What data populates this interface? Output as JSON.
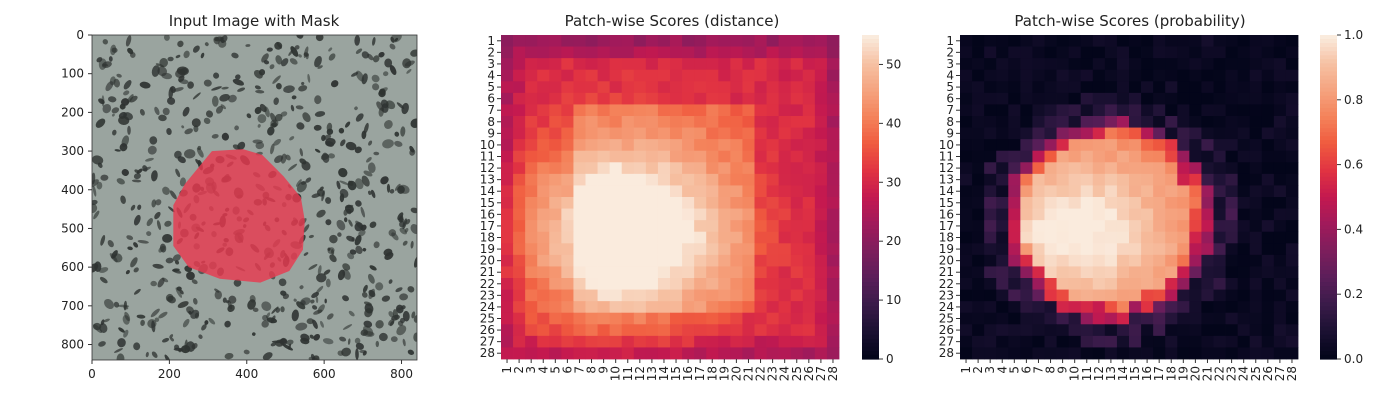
{
  "chart_data": [
    {
      "type": "image",
      "title": "Input Image with Mask",
      "xlim": [
        0,
        840
      ],
      "ylim": [
        840,
        0
      ],
      "x_ticks": [
        "0",
        "200",
        "400",
        "600",
        "800"
      ],
      "y_ticks": [
        "0",
        "100",
        "200",
        "300",
        "400",
        "500",
        "600",
        "700",
        "800"
      ],
      "mask": {
        "color": "#e8394f",
        "polygon": [
          [
            310,
            300
          ],
          [
            390,
            295
          ],
          [
            440,
            310
          ],
          [
            495,
            365
          ],
          [
            540,
            420
          ],
          [
            550,
            480
          ],
          [
            545,
            555
          ],
          [
            510,
            610
          ],
          [
            435,
            640
          ],
          [
            330,
            630
          ],
          [
            250,
            600
          ],
          [
            210,
            545
          ],
          [
            210,
            440
          ],
          [
            240,
            385
          ]
        ]
      },
      "background": {
        "base": "#9aa49f",
        "speckle": "#2e3331"
      }
    },
    {
      "type": "heatmap",
      "title": "Patch-wise Scores (distance)",
      "rows": [
        "1",
        "2",
        "3",
        "4",
        "5",
        "6",
        "7",
        "8",
        "9",
        "10",
        "11",
        "12",
        "13",
        "14",
        "15",
        "16",
        "17",
        "18",
        "19",
        "20",
        "21",
        "22",
        "23",
        "24",
        "25",
        "26",
        "27",
        "28"
      ],
      "cols": [
        "1",
        "2",
        "3",
        "4",
        "5",
        "6",
        "7",
        "8",
        "9",
        "10",
        "11",
        "12",
        "13",
        "14",
        "15",
        "16",
        "17",
        "18",
        "19",
        "20",
        "21",
        "22",
        "23",
        "24",
        "25",
        "26",
        "27",
        "28"
      ],
      "vmin": 0,
      "vmax": 55,
      "colorbar_ticks": [
        "0",
        "10",
        "20",
        "30",
        "40",
        "50"
      ],
      "model": {
        "center": [
          10.5,
          17.5
        ],
        "sigma_x": 6.2,
        "sigma_y": 5.4,
        "peak": 55,
        "base": 27,
        "halo": 13,
        "frame_inner": 7,
        "frame_outer": 21,
        "top_edge_offset": -2
      }
    },
    {
      "type": "heatmap",
      "title": "Patch-wise Scores (probability)",
      "rows": [
        "1",
        "2",
        "3",
        "4",
        "5",
        "6",
        "7",
        "8",
        "9",
        "10",
        "11",
        "12",
        "13",
        "14",
        "15",
        "16",
        "17",
        "18",
        "19",
        "20",
        "21",
        "22",
        "23",
        "24",
        "25",
        "26",
        "27",
        "28"
      ],
      "cols": [
        "1",
        "2",
        "3",
        "4",
        "5",
        "6",
        "7",
        "8",
        "9",
        "10",
        "11",
        "12",
        "13",
        "14",
        "15",
        "16",
        "17",
        "18",
        "19",
        "20",
        "21",
        "22",
        "23",
        "24",
        "25",
        "26",
        "27",
        "28"
      ],
      "vmin": 0,
      "vmax": 1,
      "colorbar_ticks": [
        "0.0",
        "0.2",
        "0.4",
        "0.6",
        "0.8",
        "1.0"
      ],
      "model": {
        "center": [
          10.5,
          17.5
        ],
        "sigma_x": 5.5,
        "sigma_y": 4.8,
        "peak": 1.0,
        "blob_radius_x": 8.3,
        "blob_radius_y": 8.3,
        "blob_center": [
          12.8,
          16.5
        ],
        "blob_level": 0.72
      }
    }
  ],
  "colors": {
    "rocket": [
      "#03051a",
      "#1c1133",
      "#3b1b4a",
      "#5c1e5a",
      "#7e1e5c",
      "#a11a5b",
      "#c4194f",
      "#e13342",
      "#f05b3f",
      "#f4825a",
      "#f5a37f",
      "#f6c1a3",
      "#faebdd"
    ]
  }
}
